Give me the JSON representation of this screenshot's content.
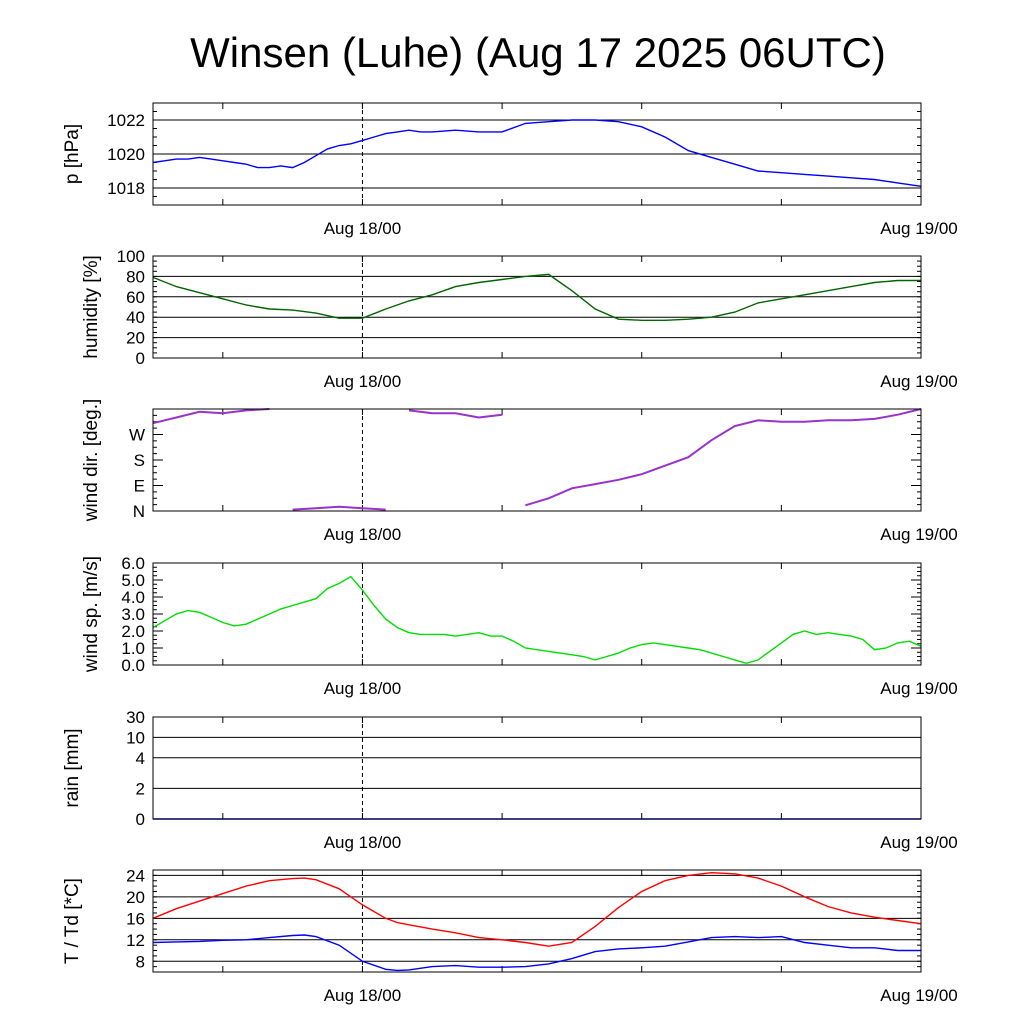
{
  "title": "Winsen (Luhe) (Aug 17 2025 06UTC)",
  "x_labels": [
    "Aug 18/00",
    "Aug 19/00"
  ],
  "chart_data": [
    {
      "type": "line",
      "ylabel": "p [hPa]",
      "ylim": [
        1017,
        1023
      ],
      "ticks": [
        1018,
        1020,
        1022
      ],
      "tick_labels": [
        "1018",
        "1020",
        "1022"
      ],
      "x_hours": [
        0,
        1,
        2,
        3,
        4,
        5,
        6,
        7,
        8,
        9,
        10,
        11,
        12,
        13,
        14,
        15,
        16,
        17,
        18,
        19,
        20,
        21,
        22,
        23,
        24,
        26,
        28,
        30,
        32,
        34,
        36,
        38,
        40,
        42,
        44,
        46,
        48,
        50,
        52,
        54,
        56,
        58,
        60,
        62,
        64,
        66
      ],
      "series": [
        {
          "color": "#0000ff",
          "values": [
            1019.5,
            1019.6,
            1019.7,
            1019.7,
            1019.8,
            1019.7,
            1019.6,
            1019.5,
            1019.4,
            1019.2,
            1019.2,
            1019.3,
            1019.2,
            1019.5,
            1019.9,
            1020.3,
            1020.5,
            1020.6,
            1020.8,
            1021.0,
            1021.2,
            1021.3,
            1021.4,
            1021.3,
            1021.3,
            1021.4,
            1021.3,
            1021.3,
            1021.8,
            1021.9,
            1022.0,
            1022.0,
            1021.9,
            1021.6,
            1021.0,
            1020.2,
            1019.8,
            1019.4,
            1019.0,
            1018.9,
            1018.8,
            1018.7,
            1018.6,
            1018.5,
            1018.3,
            1018.1
          ]
        }
      ]
    },
    {
      "type": "line",
      "ylabel": "humidity [%]",
      "ylim": [
        0,
        100
      ],
      "ticks": [
        0,
        20,
        40,
        60,
        80,
        100
      ],
      "tick_labels": [
        "0",
        "20",
        "40",
        "60",
        "80",
        "100"
      ],
      "x_hours": [
        0,
        2,
        4,
        6,
        8,
        10,
        12,
        14,
        16,
        18,
        20,
        22,
        24,
        26,
        28,
        30,
        32,
        34,
        36,
        38,
        40,
        42,
        44,
        46,
        48,
        50,
        52,
        54,
        56,
        58,
        60,
        62,
        64,
        66
      ],
      "series": [
        {
          "color": "#006400",
          "values": [
            79,
            70,
            64,
            58,
            52,
            48,
            47,
            44,
            39,
            39,
            48,
            56,
            62,
            70,
            74,
            77,
            80,
            82,
            66,
            48,
            38,
            37,
            37,
            38,
            40,
            45,
            54,
            58,
            62,
            66,
            70,
            74,
            76,
            76
          ]
        }
      ]
    },
    {
      "type": "line",
      "ylabel": "wind dir. [deg.]",
      "ylim": [
        0,
        360
      ],
      "ticks": [
        0,
        90,
        180,
        270
      ],
      "tick_labels": [
        "N",
        "E",
        "S",
        "W"
      ],
      "x_hours": [
        0,
        2,
        4,
        6,
        8,
        10,
        12,
        14,
        16,
        18,
        20,
        22,
        24,
        26,
        28,
        30,
        32,
        34,
        36,
        38,
        40,
        42,
        44,
        46,
        48,
        50,
        52,
        54,
        56,
        58,
        60,
        62,
        64,
        66
      ],
      "series": [
        {
          "color": "#9932cc",
          "values": [
            310,
            330,
            350,
            345,
            355,
            360,
            5,
            10,
            15,
            10,
            5,
            355,
            345,
            345,
            330,
            340,
            20,
            45,
            80,
            95,
            110,
            130,
            160,
            190,
            250,
            300,
            320,
            315,
            315,
            320,
            320,
            325,
            340,
            360
          ]
        }
      ]
    },
    {
      "type": "line",
      "ylabel": "wind sp. [m/s]",
      "ylim": [
        0,
        6
      ],
      "ticks": [
        0,
        1,
        2,
        3,
        4,
        5,
        6
      ],
      "tick_labels": [
        "0.0",
        "1.0",
        "2.0",
        "3.0",
        "4.0",
        "5.0",
        "6.0"
      ],
      "x_hours": [
        0,
        1,
        2,
        3,
        4,
        5,
        6,
        7,
        8,
        9,
        10,
        11,
        12,
        13,
        14,
        15,
        16,
        17,
        18,
        19,
        20,
        21,
        22,
        23,
        24,
        25,
        26,
        27,
        28,
        29,
        30,
        31,
        32,
        33,
        34,
        35,
        36,
        37,
        38,
        39,
        40,
        41,
        42,
        43,
        44,
        45,
        46,
        47,
        48,
        49,
        50,
        51,
        52,
        53,
        54,
        55,
        56,
        57,
        58,
        59,
        60,
        61,
        62,
        63,
        64,
        65,
        66
      ],
      "series": [
        {
          "color": "#00dd00",
          "values": [
            2.2,
            2.6,
            3.0,
            3.2,
            3.1,
            2.8,
            2.5,
            2.3,
            2.4,
            2.7,
            3.0,
            3.3,
            3.5,
            3.7,
            3.9,
            4.5,
            4.8,
            5.2,
            4.4,
            3.5,
            2.7,
            2.2,
            1.9,
            1.8,
            1.8,
            1.8,
            1.7,
            1.8,
            1.9,
            1.7,
            1.7,
            1.4,
            1.0,
            0.9,
            0.8,
            0.7,
            0.6,
            0.5,
            0.3,
            0.5,
            0.7,
            1.0,
            1.2,
            1.3,
            1.2,
            1.1,
            1.0,
            0.9,
            0.7,
            0.5,
            0.3,
            0.1,
            0.3,
            0.8,
            1.3,
            1.8,
            2.0,
            1.8,
            1.9,
            1.8,
            1.7,
            1.5,
            0.9,
            1.0,
            1.3,
            1.4,
            1.1
          ]
        }
      ]
    },
    {
      "type": "line",
      "ylabel": "rain [mm]",
      "scale": "custom",
      "ticks": [
        0,
        2,
        4,
        10,
        30
      ],
      "tick_labels": [
        "0",
        "2",
        "4",
        "10",
        "30"
      ],
      "tick_fractions": [
        0,
        0.3,
        0.6,
        0.8,
        1.0
      ],
      "x_hours": [
        0,
        66
      ],
      "series": [
        {
          "color": "#0000ff",
          "values": [
            0,
            0
          ]
        }
      ]
    },
    {
      "type": "line",
      "ylabel": "T / Td [*C]",
      "ylim": [
        6,
        25
      ],
      "ticks": [
        8,
        12,
        16,
        20,
        24
      ],
      "tick_labels": [
        "8",
        "12",
        "16",
        "20",
        "24"
      ],
      "x_hours": [
        0,
        2,
        4,
        6,
        8,
        10,
        12,
        13,
        14,
        16,
        18,
        20,
        21,
        22,
        24,
        26,
        28,
        30,
        32,
        34,
        36,
        38,
        40,
        42,
        44,
        46,
        48,
        50,
        52,
        54,
        56,
        58,
        60,
        62,
        64,
        66
      ],
      "series": [
        {
          "name": "T",
          "color": "#ff0000",
          "values": [
            16.0,
            17.8,
            19.2,
            20.6,
            22.0,
            23.0,
            23.4,
            23.5,
            23.2,
            21.5,
            18.5,
            16.0,
            15.2,
            14.8,
            14.0,
            13.3,
            12.4,
            12.0,
            11.5,
            10.8,
            11.5,
            14.5,
            18.0,
            21.0,
            23.0,
            24.0,
            24.5,
            24.3,
            23.5,
            22.0,
            20.0,
            18.2,
            17.0,
            16.2,
            15.6,
            15.0
          ]
        },
        {
          "name": "Td",
          "color": "#0000ff",
          "values": [
            11.5,
            11.6,
            11.7,
            11.9,
            12.0,
            12.4,
            12.8,
            12.9,
            12.6,
            11.0,
            8.0,
            6.5,
            6.3,
            6.4,
            7.0,
            7.2,
            6.9,
            6.9,
            7.0,
            7.5,
            8.5,
            9.8,
            10.3,
            10.5,
            10.8,
            11.6,
            12.4,
            12.6,
            12.4,
            12.6,
            11.5,
            11.0,
            10.5,
            10.5,
            10.0,
            10.0
          ]
        }
      ]
    }
  ]
}
